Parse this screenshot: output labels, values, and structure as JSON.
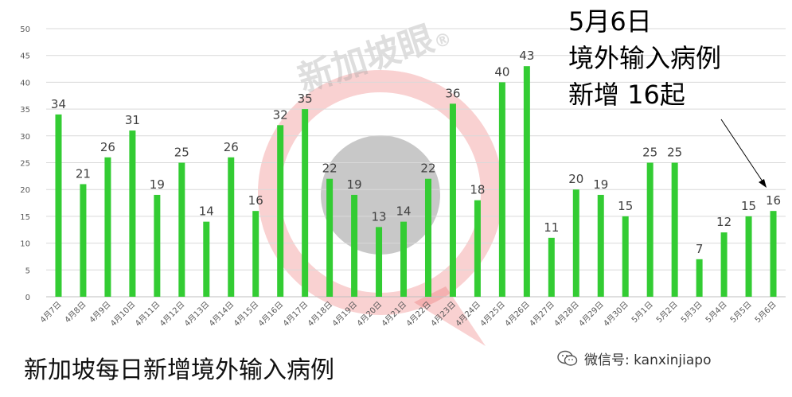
{
  "chart_data": {
    "type": "bar",
    "title": "",
    "xlabel": "",
    "ylabel": "",
    "ylim": [
      0,
      50
    ],
    "yticks": [
      0,
      5,
      10,
      15,
      20,
      25,
      30,
      35,
      40,
      45,
      50
    ],
    "grid": true,
    "legend": "none",
    "bar_color": "#33cc33",
    "categories": [
      "4月7日",
      "4月8日",
      "4月9日",
      "4月10日",
      "4月11日",
      "4月12日",
      "4月13日",
      "4月14日",
      "4月15日",
      "4月16日",
      "4月17日",
      "4月18日",
      "4月19日",
      "4月20日",
      "4月21日",
      "4月22日",
      "4月23日",
      "4月24日",
      "4月25日",
      "4月26日",
      "4月27日",
      "4月28日",
      "4月29日",
      "4月30日",
      "5月1日",
      "5月2日",
      "5月3日",
      "5月4日",
      "5月5日",
      "5月6日"
    ],
    "values": [
      34,
      21,
      26,
      31,
      19,
      25,
      14,
      26,
      16,
      32,
      35,
      22,
      19,
      13,
      14,
      22,
      36,
      18,
      40,
      43,
      11,
      20,
      19,
      15,
      25,
      25,
      7,
      12,
      15,
      16
    ]
  },
  "caption": "新加坡每日新增境外输入病例",
  "annotation": {
    "line1": "5月6日",
    "line2": "境外输入病例",
    "line3": "新增 16起"
  },
  "watermark": {
    "text": "新加坡眼",
    "mark": "®"
  },
  "wechat": {
    "text": "微信号: kanxinjiapo",
    "icon": "wechat-icon"
  }
}
